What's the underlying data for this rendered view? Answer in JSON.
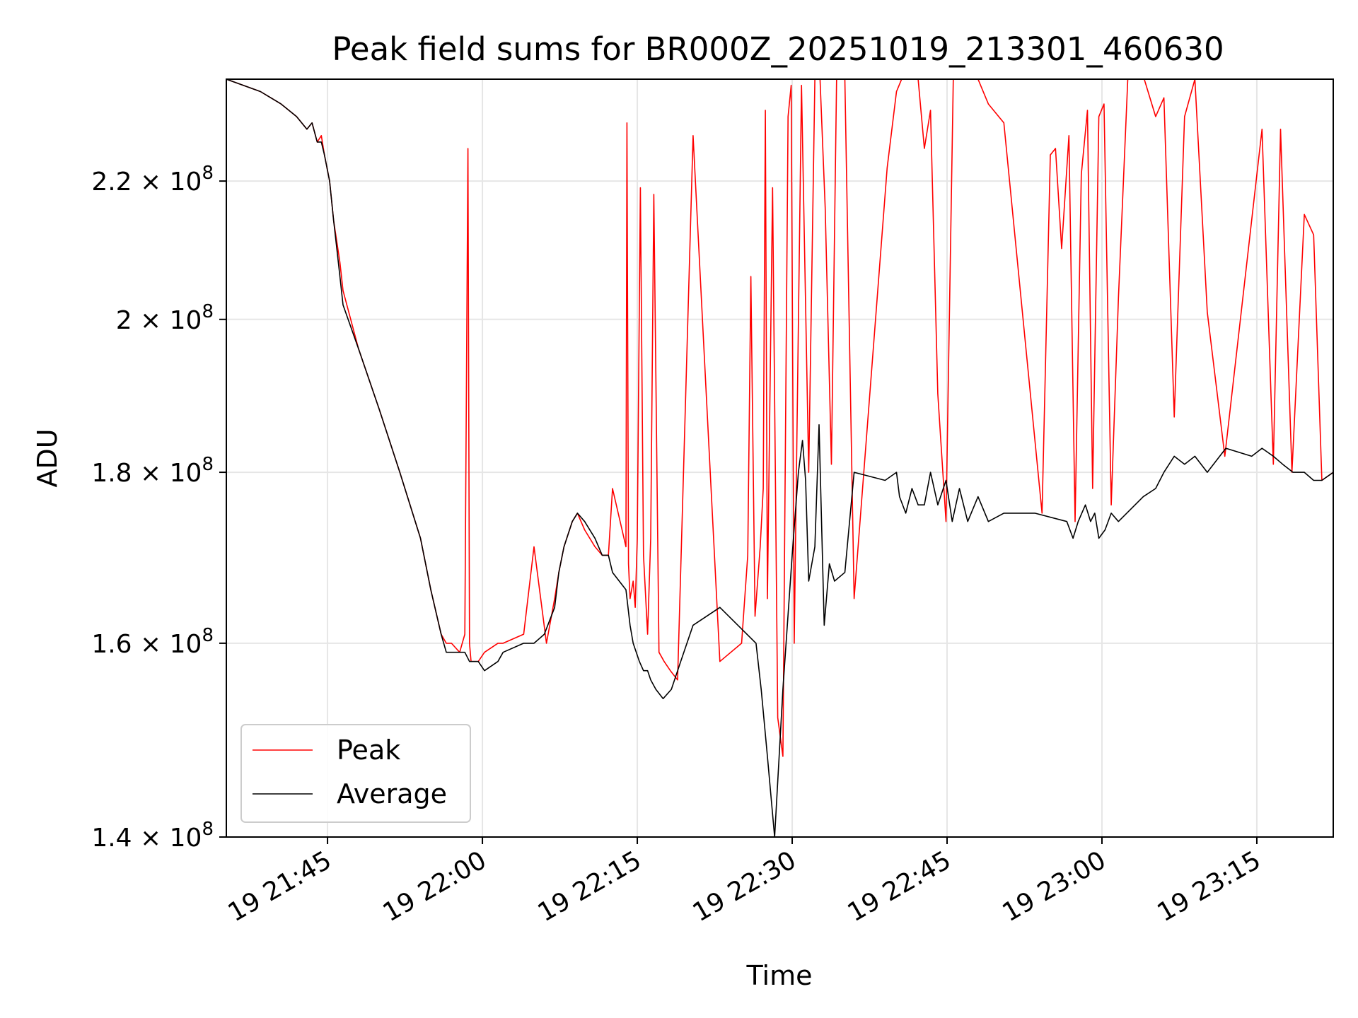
{
  "chart_data": {
    "type": "line",
    "title": "Peak field sums for BR000Z_20251019_213301_460630",
    "xlabel": "Time",
    "ylabel": "ADU",
    "yscale": "log",
    "ylim": [
      140000000,
      236000000
    ],
    "xlim_minutes": [
      -9.8,
      97.4
    ],
    "x_unit": "minutes after 19 21:45",
    "grid": true,
    "legend_position": "lower-left",
    "colors": {
      "Peak": "#ff0000",
      "Average": "#000000",
      "grid": "#e6e6e6"
    },
    "y_ticks": [
      {
        "value": 140000000,
        "mantissa": "1.4",
        "exponent": "8"
      },
      {
        "value": 160000000,
        "mantissa": "1.6",
        "exponent": "8"
      },
      {
        "value": 180000000,
        "mantissa": "1.8",
        "exponent": "8"
      },
      {
        "value": 200000000,
        "mantissa": "2",
        "exponent": "8"
      },
      {
        "value": 220000000,
        "mantissa": "2.2",
        "exponent": "8"
      }
    ],
    "x_ticks": [
      {
        "value": 0,
        "label": "19 21:45"
      },
      {
        "value": 15,
        "label": "19 22:00"
      },
      {
        "value": 30,
        "label": "19 22:15"
      },
      {
        "value": 45,
        "label": "19 22:30"
      },
      {
        "value": 60,
        "label": "19 22:45"
      },
      {
        "value": 75,
        "label": "19 23:00"
      },
      {
        "value": 90,
        "label": "19 23:15"
      }
    ],
    "series": [
      {
        "name": "Peak",
        "x": [
          -9.8,
          -6.5,
          -4.5,
          -3,
          -2,
          -1.5,
          -1,
          -0.6,
          -0.3,
          0.2,
          0.6,
          0.9,
          1.2,
          1.5,
          3,
          5,
          7,
          9,
          10,
          11,
          11.5,
          12,
          12.8,
          13.3,
          13.6,
          13.75,
          13.9,
          14.3,
          14.6,
          15.2,
          16.5,
          17,
          19,
          20,
          21.2,
          22,
          22.4,
          22.9,
          23.7,
          24.2,
          24.9,
          25.9,
          26.6,
          27.2,
          27.6,
          28.9,
          29,
          29.15,
          29.3,
          29.6,
          29.8,
          30,
          30.3,
          30.6,
          31,
          31.3,
          31.6,
          32.1,
          32.6,
          33.2,
          33.9,
          35.4,
          38,
          40.1,
          40.7,
          41,
          41.4,
          41.9,
          42.2,
          42.4,
          42.6,
          43.1,
          43.6,
          44.1,
          44.6,
          44.9,
          45.2,
          45.9,
          46.6,
          47.2,
          47.7,
          48.2,
          48.8,
          49.3,
          50.1,
          51,
          54.2,
          55.1,
          55.6,
          56.2,
          56.8,
          57.2,
          57.8,
          58.4,
          59.1,
          59.9,
          60.6,
          62,
          63,
          64,
          65.5,
          69.2,
          70,
          70.5,
          71.1,
          71.8,
          72.4,
          73,
          73.6,
          74.1,
          74.7,
          75.2,
          75.9,
          76.6,
          77.5,
          79.1,
          80.2,
          81,
          82,
          83,
          84,
          85.2,
          86.9,
          90.5,
          91.6,
          92.3,
          93.4,
          94.6,
          95.5,
          96.3,
          97.4
        ],
        "values": [
          236,
          234,
          232,
          230,
          228,
          229,
          226,
          227,
          224,
          220,
          214,
          211,
          208,
          204,
          196,
          188,
          180,
          172,
          166,
          161,
          160,
          160,
          159,
          161,
          225,
          160,
          158,
          158,
          158,
          159,
          160,
          160,
          161,
          171,
          160,
          165,
          168,
          171,
          174,
          175,
          173,
          171,
          170,
          170,
          178,
          171,
          229,
          169,
          165,
          167,
          164,
          172,
          219,
          170,
          161,
          172,
          218,
          159,
          158,
          157,
          156,
          227,
          158,
          160,
          170,
          206,
          163,
          171,
          178,
          231,
          165,
          219,
          152,
          148,
          230,
          235,
          160,
          235,
          180,
          236,
          236,
          216,
          181,
          236,
          236,
          165,
          222,
          234,
          236,
          236,
          236,
          236,
          225,
          231,
          190,
          174,
          236,
          236,
          236,
          232,
          229,
          175,
          224,
          225,
          210,
          227,
          174,
          221,
          231,
          178,
          230,
          232,
          176,
          203,
          236,
          236,
          230,
          233,
          187,
          230,
          236,
          201,
          182,
          228,
          181,
          228,
          180,
          215,
          212,
          179,
          180
        ]
      },
      {
        "name": "Average",
        "x": [
          -9.8,
          -6.5,
          -4.5,
          -3,
          -2,
          -1.5,
          -1,
          -0.6,
          -0.3,
          0.2,
          0.6,
          0.9,
          1.2,
          1.5,
          3,
          5,
          7,
          9,
          10,
          11,
          11.5,
          12,
          12.8,
          13.3,
          13.75,
          14.3,
          14.6,
          15.2,
          16.5,
          17,
          19,
          20,
          21,
          22,
          22.4,
          22.9,
          23.7,
          24.2,
          24.9,
          25.9,
          26.6,
          27.2,
          27.6,
          28.9,
          29.3,
          29.6,
          30.2,
          30.6,
          31,
          31.3,
          31.8,
          32.5,
          33.3,
          34.2,
          35.4,
          38,
          41.5,
          42,
          42.6,
          43.3,
          44.1,
          45,
          45.6,
          46,
          46.3,
          46.6,
          47.2,
          47.6,
          48.1,
          48.6,
          49.1,
          50.1,
          51,
          54,
          55.1,
          55.4,
          56,
          56.6,
          57.2,
          57.8,
          58.4,
          59.1,
          59.9,
          60.5,
          61.2,
          62,
          63,
          64,
          65.5,
          67,
          68.5,
          71.6,
          72.2,
          72.7,
          73.4,
          73.9,
          74.3,
          74.7,
          75.3,
          75.9,
          76.6,
          79,
          80.2,
          81,
          82,
          83,
          84,
          85.2,
          87,
          89.5,
          90.5,
          91.6,
          92.5,
          93.5,
          94.6,
          95.5,
          96.3,
          97.4
        ],
        "values": [
          236,
          234,
          232,
          230,
          228,
          229,
          226,
          226,
          224,
          220,
          214,
          210,
          206,
          202,
          196,
          188,
          180,
          172,
          166,
          161,
          159,
          159,
          159,
          159,
          158,
          158,
          158,
          157,
          158,
          159,
          160,
          160,
          161,
          164,
          168,
          171,
          174,
          175,
          174,
          172,
          170,
          170,
          168,
          166,
          162,
          160,
          158,
          157,
          157,
          156,
          155,
          154,
          155,
          158,
          162,
          164,
          160,
          155,
          148,
          140,
          155,
          170,
          180,
          184,
          179,
          167,
          171,
          186,
          162,
          169,
          167,
          168,
          180,
          179,
          180,
          177,
          175,
          178,
          176,
          176,
          180,
          176,
          179,
          174,
          178,
          174,
          177,
          174,
          175,
          175,
          175,
          174,
          172,
          174,
          176,
          174,
          175,
          172,
          173,
          175,
          174,
          177,
          178,
          180,
          182,
          181,
          182,
          180,
          183,
          182,
          183,
          182,
          181,
          180,
          180,
          179,
          179,
          180
        ]
      }
    ]
  },
  "legend": {
    "items": [
      {
        "label": "Peak",
        "color": "#ff0000"
      },
      {
        "label": "Average",
        "color": "#000000"
      }
    ]
  }
}
